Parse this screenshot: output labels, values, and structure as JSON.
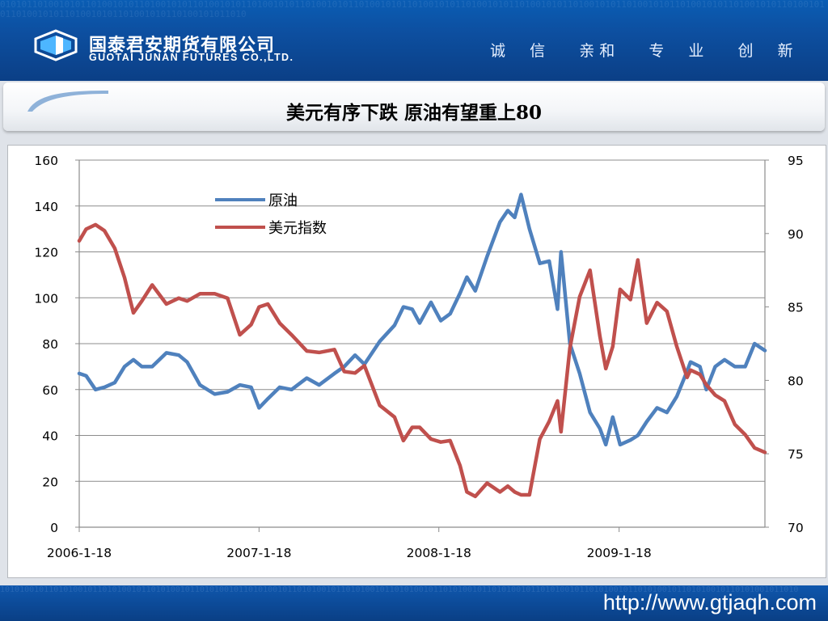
{
  "header": {
    "company_cn": "国泰君安期货有限公司",
    "company_en": "GUOTAI JUNAN FUTURES CO.,LTD.",
    "slogan": "诚  信   亲和   专  业   创  新",
    "colors": {
      "bg": "#0d4fa0",
      "text": "#ffffff"
    },
    "logo_icon": "hexagon-logo-icon"
  },
  "slide": {
    "title": "美元有序下跌 原油有望重上80"
  },
  "footer": {
    "url": "http://www.gtjaqh.com"
  },
  "chart_data": {
    "type": "line",
    "x_ticks": [
      "2006-1-18",
      "2007-1-18",
      "2008-1-18",
      "2009-1-18"
    ],
    "xlim": [
      "2006-01-18",
      "2009-11-10"
    ],
    "y_left": {
      "ylim": [
        0,
        160
      ],
      "ticks": [
        0,
        20,
        40,
        60,
        80,
        100,
        120,
        140,
        160
      ]
    },
    "y_right": {
      "ylim": [
        70,
        95
      ],
      "ticks": [
        70,
        75,
        80,
        85,
        90,
        95
      ]
    },
    "grid": true,
    "legend_position": "top-center",
    "series": [
      {
        "name": "原油",
        "axis": "left",
        "color": "#4f81bd",
        "points": [
          [
            "2006-01-18",
            67
          ],
          [
            "2006-02-01",
            66
          ],
          [
            "2006-02-20",
            60
          ],
          [
            "2006-03-10",
            61
          ],
          [
            "2006-03-31",
            63
          ],
          [
            "2006-04-20",
            70
          ],
          [
            "2006-05-08",
            73
          ],
          [
            "2006-05-25",
            70
          ],
          [
            "2006-06-15",
            70
          ],
          [
            "2006-07-14",
            76
          ],
          [
            "2006-08-08",
            75
          ],
          [
            "2006-08-25",
            72
          ],
          [
            "2006-09-20",
            62
          ],
          [
            "2006-10-20",
            58
          ],
          [
            "2006-11-15",
            59
          ],
          [
            "2006-12-10",
            62
          ],
          [
            "2007-01-02",
            61
          ],
          [
            "2007-01-18",
            52
          ],
          [
            "2007-02-05",
            56
          ],
          [
            "2007-03-01",
            61
          ],
          [
            "2007-03-25",
            60
          ],
          [
            "2007-04-25",
            65
          ],
          [
            "2007-05-20",
            62
          ],
          [
            "2007-06-20",
            67
          ],
          [
            "2007-07-10",
            70
          ],
          [
            "2007-08-01",
            75
          ],
          [
            "2007-08-20",
            71
          ],
          [
            "2007-09-20",
            81
          ],
          [
            "2007-10-20",
            88
          ],
          [
            "2007-11-07",
            96
          ],
          [
            "2007-11-25",
            95
          ],
          [
            "2007-12-10",
            89
          ],
          [
            "2008-01-02",
            98
          ],
          [
            "2008-01-22",
            90
          ],
          [
            "2008-02-10",
            93
          ],
          [
            "2008-03-01",
            102
          ],
          [
            "2008-03-15",
            109
          ],
          [
            "2008-04-01",
            103
          ],
          [
            "2008-04-25",
            118
          ],
          [
            "2008-05-21",
            133
          ],
          [
            "2008-06-06",
            138
          ],
          [
            "2008-06-20",
            135
          ],
          [
            "2008-07-03",
            145
          ],
          [
            "2008-07-20",
            130
          ],
          [
            "2008-08-10",
            115
          ],
          [
            "2008-08-29",
            116
          ],
          [
            "2008-09-15",
            95
          ],
          [
            "2008-09-22",
            120
          ],
          [
            "2008-10-10",
            80
          ],
          [
            "2008-10-30",
            67
          ],
          [
            "2008-11-20",
            50
          ],
          [
            "2008-12-10",
            43
          ],
          [
            "2008-12-22",
            36
          ],
          [
            "2009-01-05",
            48
          ],
          [
            "2009-01-20",
            36
          ],
          [
            "2009-02-10",
            38
          ],
          [
            "2009-02-25",
            40
          ],
          [
            "2009-03-15",
            46
          ],
          [
            "2009-04-05",
            52
          ],
          [
            "2009-04-25",
            50
          ],
          [
            "2009-05-15",
            57
          ],
          [
            "2009-06-05",
            68
          ],
          [
            "2009-06-12",
            72
          ],
          [
            "2009-07-01",
            70
          ],
          [
            "2009-07-14",
            60
          ],
          [
            "2009-08-01",
            70
          ],
          [
            "2009-08-20",
            73
          ],
          [
            "2009-09-10",
            70
          ],
          [
            "2009-10-01",
            70
          ],
          [
            "2009-10-20",
            80
          ],
          [
            "2009-11-10",
            77
          ]
        ]
      },
      {
        "name": "美元指数",
        "axis": "right",
        "color": "#c0504d",
        "points": [
          [
            "2006-01-18",
            89.5
          ],
          [
            "2006-02-01",
            90.3
          ],
          [
            "2006-02-20",
            90.6
          ],
          [
            "2006-03-10",
            90.2
          ],
          [
            "2006-03-31",
            89.0
          ],
          [
            "2006-04-20",
            87.0
          ],
          [
            "2006-05-08",
            84.6
          ],
          [
            "2006-05-25",
            85.4
          ],
          [
            "2006-06-15",
            86.5
          ],
          [
            "2006-07-14",
            85.2
          ],
          [
            "2006-08-08",
            85.6
          ],
          [
            "2006-08-25",
            85.4
          ],
          [
            "2006-09-20",
            85.9
          ],
          [
            "2006-10-20",
            85.9
          ],
          [
            "2006-11-15",
            85.6
          ],
          [
            "2006-12-10",
            83.1
          ],
          [
            "2007-01-02",
            83.8
          ],
          [
            "2007-01-18",
            85.0
          ],
          [
            "2007-02-05",
            85.2
          ],
          [
            "2007-03-01",
            83.9
          ],
          [
            "2007-03-25",
            83.1
          ],
          [
            "2007-04-25",
            82.0
          ],
          [
            "2007-05-20",
            81.9
          ],
          [
            "2007-06-20",
            82.1
          ],
          [
            "2007-07-10",
            80.6
          ],
          [
            "2007-08-01",
            80.5
          ],
          [
            "2007-08-20",
            81.0
          ],
          [
            "2007-09-20",
            78.3
          ],
          [
            "2007-10-20",
            77.5
          ],
          [
            "2007-11-07",
            75.9
          ],
          [
            "2007-11-25",
            76.8
          ],
          [
            "2007-12-10",
            76.8
          ],
          [
            "2008-01-02",
            76.0
          ],
          [
            "2008-01-22",
            75.8
          ],
          [
            "2008-02-10",
            75.9
          ],
          [
            "2008-03-01",
            74.2
          ],
          [
            "2008-03-15",
            72.4
          ],
          [
            "2008-04-01",
            72.1
          ],
          [
            "2008-04-25",
            73.0
          ],
          [
            "2008-05-21",
            72.4
          ],
          [
            "2008-06-06",
            72.8
          ],
          [
            "2008-06-20",
            72.4
          ],
          [
            "2008-07-03",
            72.2
          ],
          [
            "2008-07-20",
            72.2
          ],
          [
            "2008-08-10",
            76.0
          ],
          [
            "2008-08-29",
            77.2
          ],
          [
            "2008-09-15",
            78.6
          ],
          [
            "2008-09-22",
            76.5
          ],
          [
            "2008-10-10",
            82.2
          ],
          [
            "2008-10-30",
            85.7
          ],
          [
            "2008-11-20",
            87.5
          ],
          [
            "2008-12-10",
            83.0
          ],
          [
            "2008-12-22",
            80.8
          ],
          [
            "2009-01-05",
            82.3
          ],
          [
            "2009-01-20",
            86.2
          ],
          [
            "2009-02-10",
            85.5
          ],
          [
            "2009-02-25",
            88.2
          ],
          [
            "2009-03-15",
            83.9
          ],
          [
            "2009-04-05",
            85.3
          ],
          [
            "2009-04-25",
            84.7
          ],
          [
            "2009-05-15",
            82.3
          ],
          [
            "2009-06-05",
            80.2
          ],
          [
            "2009-06-12",
            80.7
          ],
          [
            "2009-07-01",
            80.4
          ],
          [
            "2009-07-14",
            79.7
          ],
          [
            "2009-08-01",
            79.0
          ],
          [
            "2009-08-20",
            78.6
          ],
          [
            "2009-09-10",
            77.0
          ],
          [
            "2009-10-01",
            76.3
          ],
          [
            "2009-10-20",
            75.4
          ],
          [
            "2009-11-10",
            75.1
          ]
        ]
      }
    ]
  }
}
